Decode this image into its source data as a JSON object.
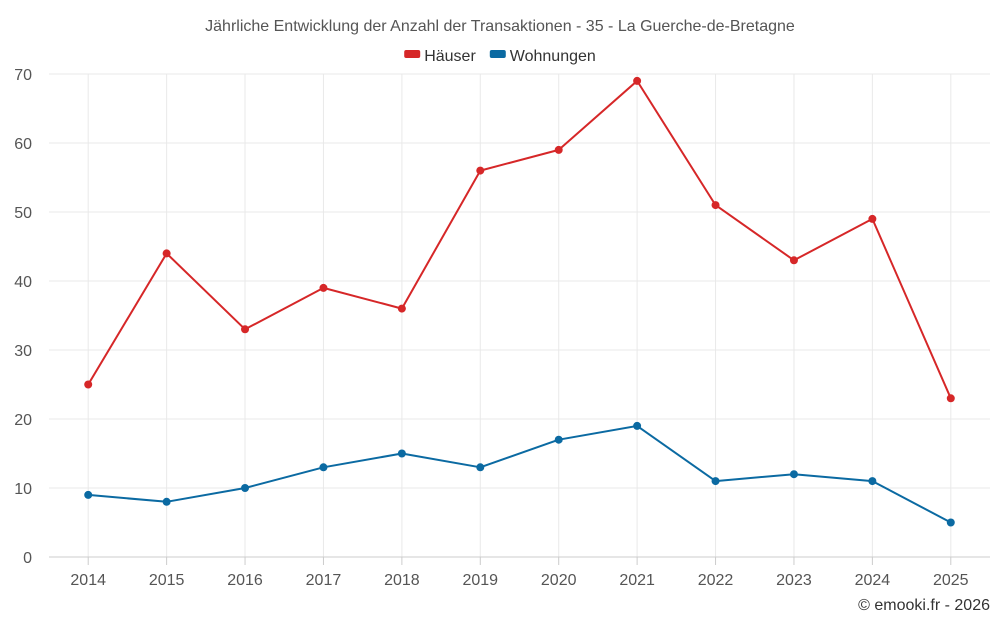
{
  "chart_data": {
    "type": "line",
    "title": "Jährliche Entwicklung der Anzahl der Transaktionen - 35 - La Guerche-de-Bretagne",
    "categories": [
      "2014",
      "2015",
      "2016",
      "2017",
      "2018",
      "2019",
      "2020",
      "2021",
      "2022",
      "2023",
      "2024",
      "2025"
    ],
    "series": [
      {
        "name": "Häuser",
        "color": "#d62728",
        "values": [
          25,
          44,
          33,
          39,
          36,
          56,
          59,
          69,
          51,
          43,
          49,
          23
        ]
      },
      {
        "name": "Wohnungen",
        "color": "#0b6aa2",
        "values": [
          9,
          8,
          10,
          13,
          15,
          13,
          17,
          19,
          11,
          12,
          11,
          5
        ]
      }
    ],
    "ylim": [
      0,
      70
    ],
    "yticks": [
      0,
      10,
      20,
      30,
      40,
      50,
      60,
      70
    ],
    "grid": true,
    "legend_position": "top-center",
    "xlabel": "",
    "ylabel": ""
  },
  "credit": "© emooki.fr - 2026"
}
